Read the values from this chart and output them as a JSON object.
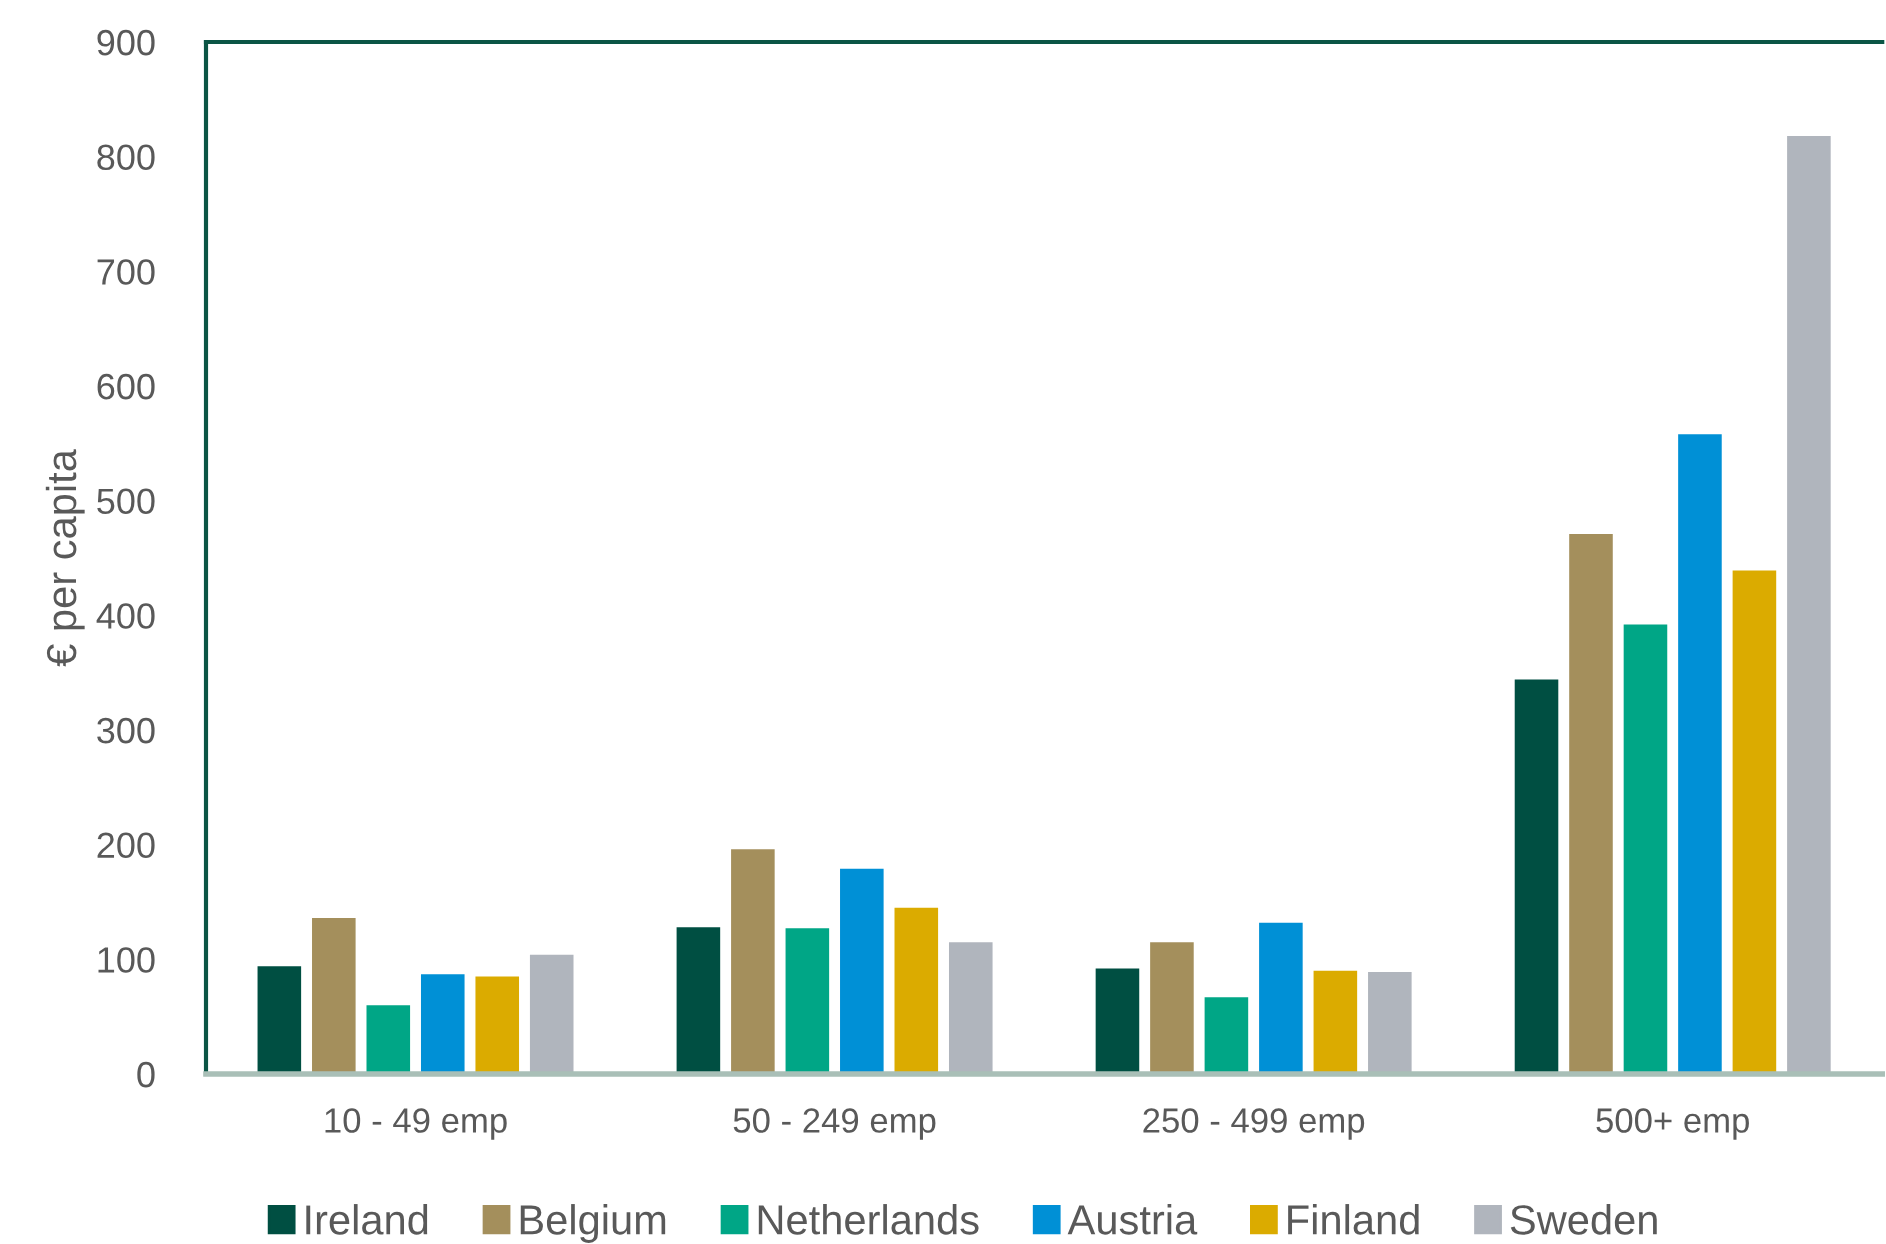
{
  "chart_data": {
    "type": "bar",
    "ylabel": "€ per capita",
    "categories": [
      "10 - 49 emp",
      "50 - 249 emp",
      "250 - 499 emp",
      "500+ emp"
    ],
    "series": [
      {
        "name": "Ireland",
        "color": "#004f42",
        "values": [
          94,
          128,
          92,
          344
        ]
      },
      {
        "name": "Belgium",
        "color": "#a48f5c",
        "values": [
          136,
          196,
          115,
          471
        ]
      },
      {
        "name": "Netherlands",
        "color": "#00a686",
        "values": [
          60,
          127,
          67,
          392
        ]
      },
      {
        "name": "Austria",
        "color": "#0090d6",
        "values": [
          87,
          179,
          132,
          558
        ]
      },
      {
        "name": "Finland",
        "color": "#dbab00",
        "values": [
          85,
          145,
          90,
          439
        ]
      },
      {
        "name": "Sweden",
        "color": "#b0b5bd",
        "values": [
          104,
          115,
          89,
          818
        ]
      }
    ],
    "ylim": [
      0,
      900
    ],
    "yticks": [
      0,
      100,
      200,
      300,
      400,
      500,
      600,
      700,
      800,
      900
    ],
    "grid": false,
    "legend": "bottom"
  }
}
